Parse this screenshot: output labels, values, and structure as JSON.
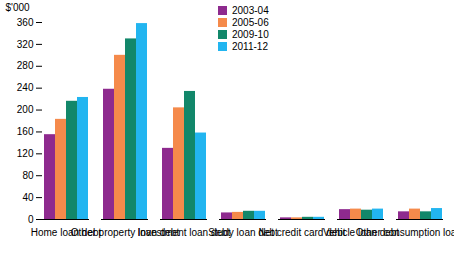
{
  "chart_data": {
    "type": "bar",
    "y_label": "$'000",
    "categories": [
      "Home loan debt",
      "Other property loan debt",
      "Investment loan debt",
      "Study loan debt",
      "Net credit card debt",
      "Vehicle loan debt",
      "Other consumption loan debt"
    ],
    "series": [
      {
        "name": "2003-04",
        "color": "#8e2a8e",
        "values": [
          155,
          238,
          130,
          12,
          3,
          18,
          14
        ]
      },
      {
        "name": "2005-06",
        "color": "#f58a4b",
        "values": [
          183,
          300,
          204,
          13,
          3,
          19,
          19
        ]
      },
      {
        "name": "2009-10",
        "color": "#12876a",
        "values": [
          216,
          330,
          234,
          15,
          4,
          17,
          14
        ]
      },
      {
        "name": "2011-12",
        "color": "#22b5f0",
        "values": [
          223,
          358,
          158,
          15,
          4,
          19,
          20
        ]
      }
    ],
    "ylim": [
      0,
      360
    ],
    "yticks": [
      0,
      40,
      80,
      120,
      160,
      200,
      240,
      280,
      320,
      360
    ],
    "grid": false,
    "legend": "top"
  }
}
